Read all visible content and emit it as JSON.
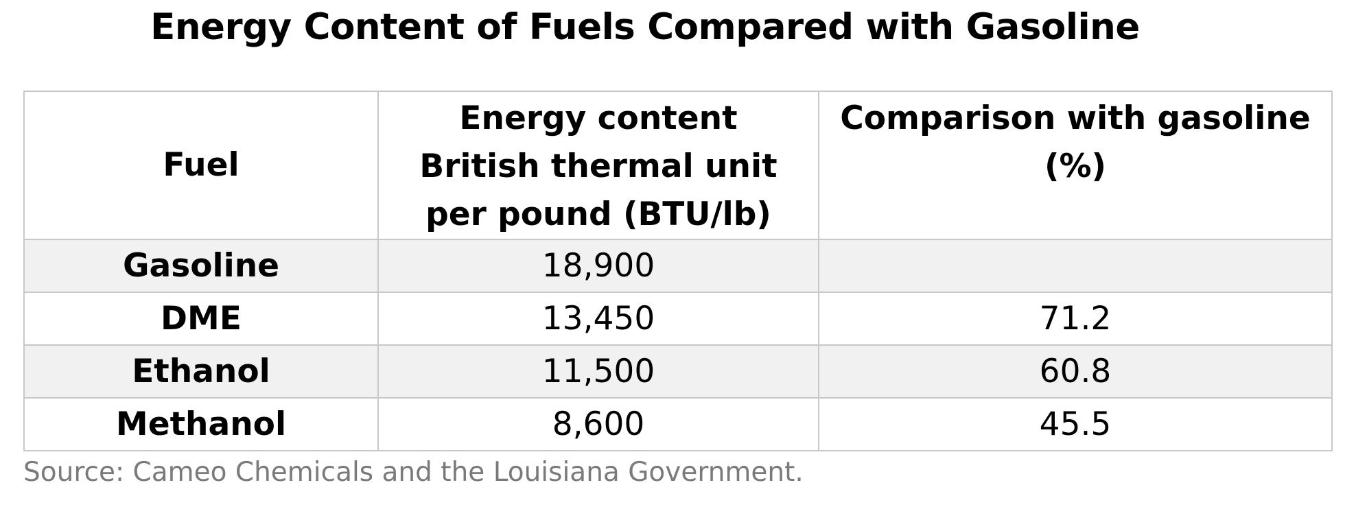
{
  "title": "Energy Content of Fuels Compared with Gasoline",
  "table": {
    "headers": {
      "fuel": "Fuel",
      "energy_line1": "Energy content",
      "energy_line2": "British thermal unit",
      "energy_line3": "per pound (BTU/lb)",
      "comparison_line1": "Comparison with gasoline",
      "comparison_line2": "(%)"
    },
    "rows": [
      {
        "fuel": "Gasoline",
        "energy": "18,900",
        "comparison": ""
      },
      {
        "fuel": "DME",
        "energy": "13,450",
        "comparison": "71.2"
      },
      {
        "fuel": "Ethanol",
        "energy": "11,500",
        "comparison": "60.8"
      },
      {
        "fuel": "Methanol",
        "energy": "8,600",
        "comparison": "45.5"
      }
    ]
  },
  "source": "Source: Cameo Chemicals and the Louisiana Government.",
  "colors": {
    "border": "#c8c8c8",
    "shaded_row": "#f1f1f1",
    "source_text": "#7a7a7a"
  }
}
